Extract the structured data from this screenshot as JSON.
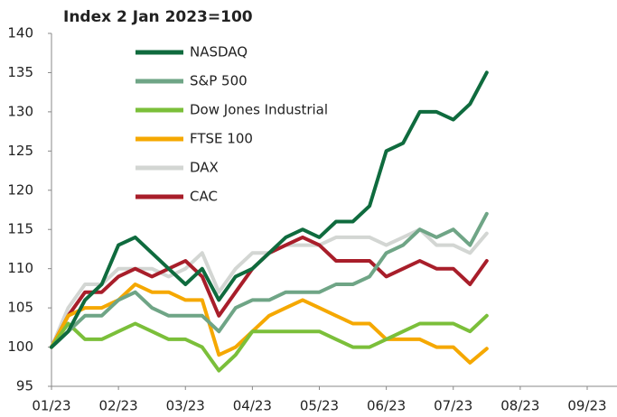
{
  "chart_data": {
    "type": "line",
    "title": "Index 2 Jan 2023=100",
    "categories": [
      "01/23",
      null,
      null,
      null,
      "02/23",
      null,
      null,
      null,
      "03/23",
      null,
      null,
      null,
      "04/23",
      null,
      null,
      null,
      "05/23",
      null,
      null,
      null,
      "06/23",
      null,
      null,
      null,
      "07/23",
      null,
      null,
      null,
      "08/23",
      null,
      null,
      null,
      "09/23"
    ],
    "series": [
      {
        "name": "DAX",
        "color": "#d3d6d3",
        "values": [
          100,
          105,
          108,
          108,
          110,
          110,
          110,
          109,
          110,
          112,
          107,
          110,
          112,
          112,
          113,
          113,
          113,
          114,
          114,
          114,
          113,
          114,
          115,
          113,
          113,
          112,
          114.5,
          null,
          null,
          null,
          null,
          null,
          null
        ]
      },
      {
        "name": "CAC",
        "color": "#a81e2a",
        "values": [
          100,
          104,
          107,
          107,
          109,
          110,
          109,
          110,
          111,
          109,
          104,
          107,
          110,
          112,
          113,
          114,
          113,
          111,
          111,
          111,
          109,
          110,
          111,
          110,
          110,
          108,
          111,
          null,
          null,
          null,
          null,
          null,
          null
        ]
      },
      {
        "name": "FTSE 100",
        "color": "#f5a800",
        "values": [
          100,
          104,
          105,
          105,
          106,
          108,
          107,
          107,
          106,
          106,
          99,
          100,
          102,
          104,
          105,
          106,
          105,
          104,
          103,
          103,
          101,
          101,
          101,
          100,
          100,
          98,
          99.8,
          null,
          null,
          null,
          null,
          null,
          null
        ]
      },
      {
        "name": "Dow Jones Industrial",
        "color": "#7bbf3a",
        "values": [
          100,
          103,
          101,
          101,
          102,
          103,
          102,
          101,
          101,
          100,
          97,
          99,
          102,
          102,
          102,
          102,
          102,
          101,
          100,
          100,
          101,
          102,
          103,
          103,
          103,
          102,
          104,
          null,
          null,
          null,
          null,
          null,
          null
        ]
      },
      {
        "name": "S&P 500",
        "color": "#6fa586",
        "values": [
          100,
          102,
          104,
          104,
          106,
          107,
          105,
          104,
          104,
          104,
          102,
          105,
          106,
          106,
          107,
          107,
          107,
          108,
          108,
          109,
          112,
          113,
          115,
          114,
          115,
          113,
          117,
          null,
          null,
          null,
          null,
          null,
          null
        ]
      },
      {
        "name": "NASDAQ",
        "color": "#0f6b3e",
        "values": [
          100,
          102,
          106,
          108,
          113,
          114,
          112,
          110,
          108,
          110,
          106,
          109,
          110,
          112,
          114,
          115,
          114,
          116,
          116,
          118,
          125,
          126,
          130,
          130,
          129,
          131,
          135,
          null,
          null,
          null,
          null,
          null,
          null
        ]
      }
    ],
    "legend_order": [
      "NASDAQ",
      "S&P 500",
      "Dow Jones Industrial",
      "FTSE 100",
      "DAX",
      "CAC"
    ],
    "ylim": [
      95,
      140
    ],
    "yticks": [
      95,
      100,
      105,
      110,
      115,
      120,
      125,
      130,
      135,
      140
    ]
  }
}
